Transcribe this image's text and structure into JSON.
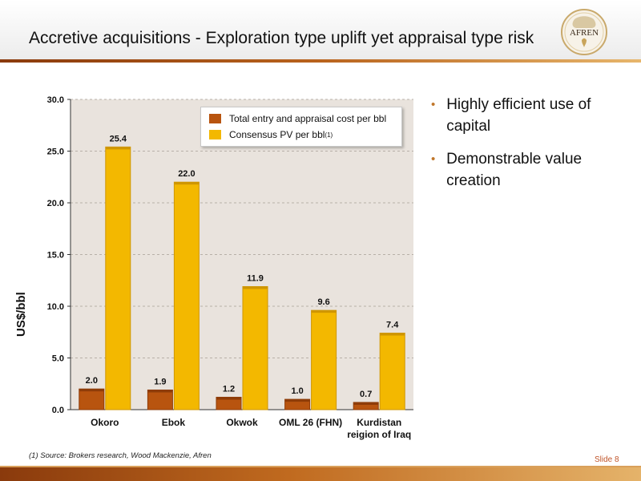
{
  "slide": {
    "title": "Accretive acquisitions - Exploration type uplift yet appraisal type risk",
    "logo_text": "AFREN",
    "bullets": [
      "Highly efficient use of capital",
      "Demonstrable value creation"
    ],
    "footnote": "(1) Source: Brokers research, Wood Mackenzie, Afren",
    "slide_number": "Slide 8"
  },
  "colors": {
    "accent": "#c0762a",
    "series_cost": "#b8540f",
    "series_pv": "#f3b800",
    "plot_bg": "#e9e3dd",
    "footer": "#8a3a0c"
  },
  "chart_data": {
    "type": "bar",
    "categories": [
      [
        "Okoro"
      ],
      [
        "Ebok"
      ],
      [
        "Okwok"
      ],
      [
        "OML 26 (FHN)"
      ],
      [
        "Kurdistan",
        "reigion of Iraq"
      ]
    ],
    "series": [
      {
        "name": "Total entry and appraisal cost per bbl",
        "values": [
          2.0,
          1.9,
          1.2,
          1.0,
          0.7
        ],
        "labels": [
          "2.0",
          "1.9",
          "1.2",
          "1.0",
          "0.7"
        ]
      },
      {
        "name": "Consensus PV per bbl",
        "superscript": "(1)",
        "values": [
          25.4,
          22.0,
          11.9,
          9.6,
          7.4
        ],
        "labels": [
          "25.4",
          "22.0",
          "11.9",
          "9.6",
          "7.4"
        ]
      }
    ],
    "ylabel": "US$/bbl",
    "ylim": [
      0,
      30
    ],
    "yticks": [
      "0.0",
      "5.0",
      "10.0",
      "15.0",
      "20.0",
      "25.0",
      "30.0"
    ],
    "grid": true,
    "legend_position": "top-right"
  }
}
